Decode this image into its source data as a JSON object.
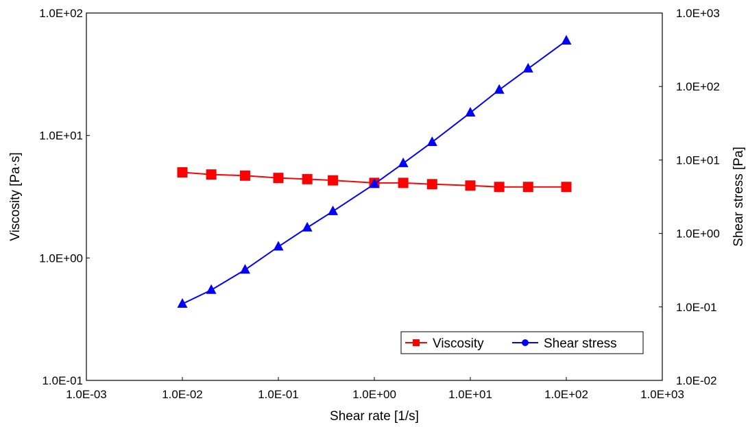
{
  "chart_data": {
    "type": "line",
    "x_scale": "log",
    "y_scale": "log",
    "y2_scale": "log",
    "grid": false,
    "legend_position": "bottom-right",
    "xlabel": "Shear rate [1/s]",
    "ylabel": "Viscosity [Pa·s]",
    "y2label": "Shear stress [Pa]",
    "xlim": [
      0.001,
      1000
    ],
    "ylim": [
      0.1,
      100
    ],
    "y2lim": [
      0.01,
      1000
    ],
    "x_ticks": [
      "1.0E-03",
      "1.0E-02",
      "1.0E-01",
      "1.0E+00",
      "1.0E+01",
      "1.0E+02",
      "1.0E+03"
    ],
    "y_ticks": [
      "1.0E-01",
      "1.0E+00",
      "1.0E+01",
      "1.0E+02"
    ],
    "y2_ticks": [
      "1.0E-02",
      "1.0E-01",
      "1.0E+00",
      "1.0E+01",
      "1.0E+02",
      "1.0E+03"
    ],
    "x": [
      0.01,
      0.02,
      0.045,
      0.1,
      0.2,
      0.37,
      1,
      2,
      4,
      10,
      20,
      40,
      100
    ],
    "series": [
      {
        "name": "Viscosity",
        "axis": "left",
        "color": "#ff0000",
        "marker": "square",
        "values": [
          5.0,
          4.8,
          4.7,
          4.5,
          4.4,
          4.3,
          4.1,
          4.1,
          4.0,
          3.9,
          3.8,
          3.8,
          3.8
        ]
      },
      {
        "name": "Shear stress",
        "axis": "right",
        "color": "#0000ff",
        "marker": "triangle",
        "legend_marker": "circle",
        "values": [
          0.11,
          0.17,
          0.32,
          0.66,
          1.2,
          2.0,
          4.7,
          9.0,
          17.5,
          44,
          90,
          175,
          420
        ]
      }
    ]
  }
}
